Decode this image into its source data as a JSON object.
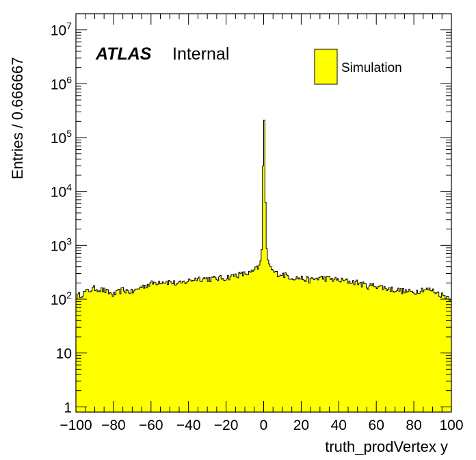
{
  "chart_data": {
    "type": "histogram",
    "xlabel": "truth_prodVertex y",
    "ylabel": "Entries / 0.666667",
    "x_range": [
      -100,
      100
    ],
    "y_range": [
      0.8,
      20000000
    ],
    "y_scale": "log",
    "bin_width": 0.666667,
    "fill_color": "#ffff00",
    "line_color": "#000000",
    "x_ticks": [
      -100,
      -80,
      -60,
      -40,
      -20,
      0,
      20,
      40,
      60,
      80,
      100
    ],
    "x_tick_labels": [
      "−100",
      "−80",
      "−60",
      "−40",
      "−20",
      "0",
      "20",
      "40",
      "60",
      "80",
      "100"
    ],
    "y_ticks": [
      {
        "value": 1,
        "base": "1",
        "exp": ""
      },
      {
        "value": 10,
        "base": "10",
        "exp": ""
      },
      {
        "value": 100,
        "base": "10",
        "exp": "2"
      },
      {
        "value": 1000,
        "base": "10",
        "exp": "3"
      },
      {
        "value": 10000,
        "base": "10",
        "exp": "4"
      },
      {
        "value": 100000,
        "base": "10",
        "exp": "5"
      },
      {
        "value": 1000000,
        "base": "10",
        "exp": "6"
      },
      {
        "value": 10000000,
        "base": "10",
        "exp": "7"
      }
    ],
    "profile_points": [
      [
        -100,
        110
      ],
      [
        -95,
        135
      ],
      [
        -90,
        160
      ],
      [
        -85,
        145
      ],
      [
        -80,
        120
      ],
      [
        -75,
        150
      ],
      [
        -70,
        135
      ],
      [
        -65,
        170
      ],
      [
        -60,
        195
      ],
      [
        -55,
        215
      ],
      [
        -50,
        210
      ],
      [
        -45,
        190
      ],
      [
        -40,
        220
      ],
      [
        -35,
        245
      ],
      [
        -30,
        240
      ],
      [
        -25,
        240
      ],
      [
        -20,
        250
      ],
      [
        -15,
        280
      ],
      [
        -10,
        295
      ],
      [
        -7,
        305
      ],
      [
        -5,
        340
      ],
      [
        -3,
        390
      ],
      [
        -2,
        450
      ],
      [
        -1.2,
        620
      ],
      [
        -0.6,
        1500
      ],
      [
        0,
        1250000
      ],
      [
        0.7,
        30000
      ],
      [
        1.3,
        1300
      ],
      [
        2,
        600
      ],
      [
        3,
        420
      ],
      [
        5,
        330
      ],
      [
        7,
        300
      ],
      [
        10,
        290
      ],
      [
        15,
        255
      ],
      [
        20,
        245
      ],
      [
        25,
        225
      ],
      [
        30,
        250
      ],
      [
        35,
        240
      ],
      [
        40,
        225
      ],
      [
        45,
        215
      ],
      [
        50,
        205
      ],
      [
        55,
        175
      ],
      [
        60,
        180
      ],
      [
        65,
        160
      ],
      [
        70,
        150
      ],
      [
        75,
        140
      ],
      [
        80,
        135
      ],
      [
        85,
        155
      ],
      [
        90,
        145
      ],
      [
        95,
        120
      ],
      [
        100,
        105
      ]
    ],
    "legend": [
      {
        "label": "Simulation",
        "color": "#ffff00"
      }
    ],
    "legend_position": "top-right",
    "annotation": {
      "bold": "ATLAS",
      "text": "Internal"
    },
    "grid": false
  }
}
